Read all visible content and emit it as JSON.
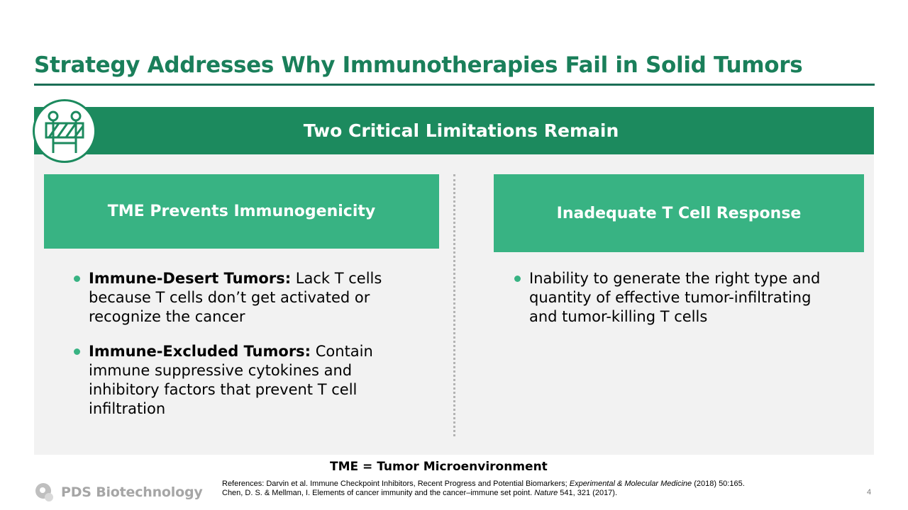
{
  "slide": {
    "title": "Strategy Addresses Why Immunotherapies Fail in Solid Tumors",
    "banner": "Two Critical Limitations Remain",
    "badge_icon": "road-barrier-icon",
    "accent_color": "#1c8a5e",
    "card_color": "#38b383"
  },
  "left": {
    "heading": "TME Prevents Immunogenicity",
    "bullets": [
      {
        "bold": "Immune-Desert Tumors:",
        "text": " Lack T cells because T cells don’t get activated or recognize the cancer"
      },
      {
        "bold": "Immune-Excluded Tumors:",
        "text": " Contain immune suppressive cytokines and inhibitory factors that prevent T cell infiltration"
      }
    ]
  },
  "right": {
    "heading": "Inadequate T Cell Response",
    "bullets": [
      {
        "text": "Inability to generate the right type and quantity of effective tumor-infiltrating and tumor-killing T cells"
      }
    ]
  },
  "footer": {
    "abbreviation": "TME = Tumor Microenvironment",
    "company": "PDS Biotechnology",
    "references": {
      "line1_prefix": "References: Darvin et al. Immune Checkpoint Inhibitors, Recent Progress and Potential Biomarkers; ",
      "line1_journal": "Experimental & Molecular Medicine",
      "line1_suffix": " (2018) 50:165.",
      "line2_prefix": "Chen, D. S. & Mellman, I. Elements of cancer immunity and the cancer–immune set point. ",
      "line2_journal": "Nature",
      "line2_suffix": " 541, 321 (2017)."
    },
    "page_number": "4"
  }
}
